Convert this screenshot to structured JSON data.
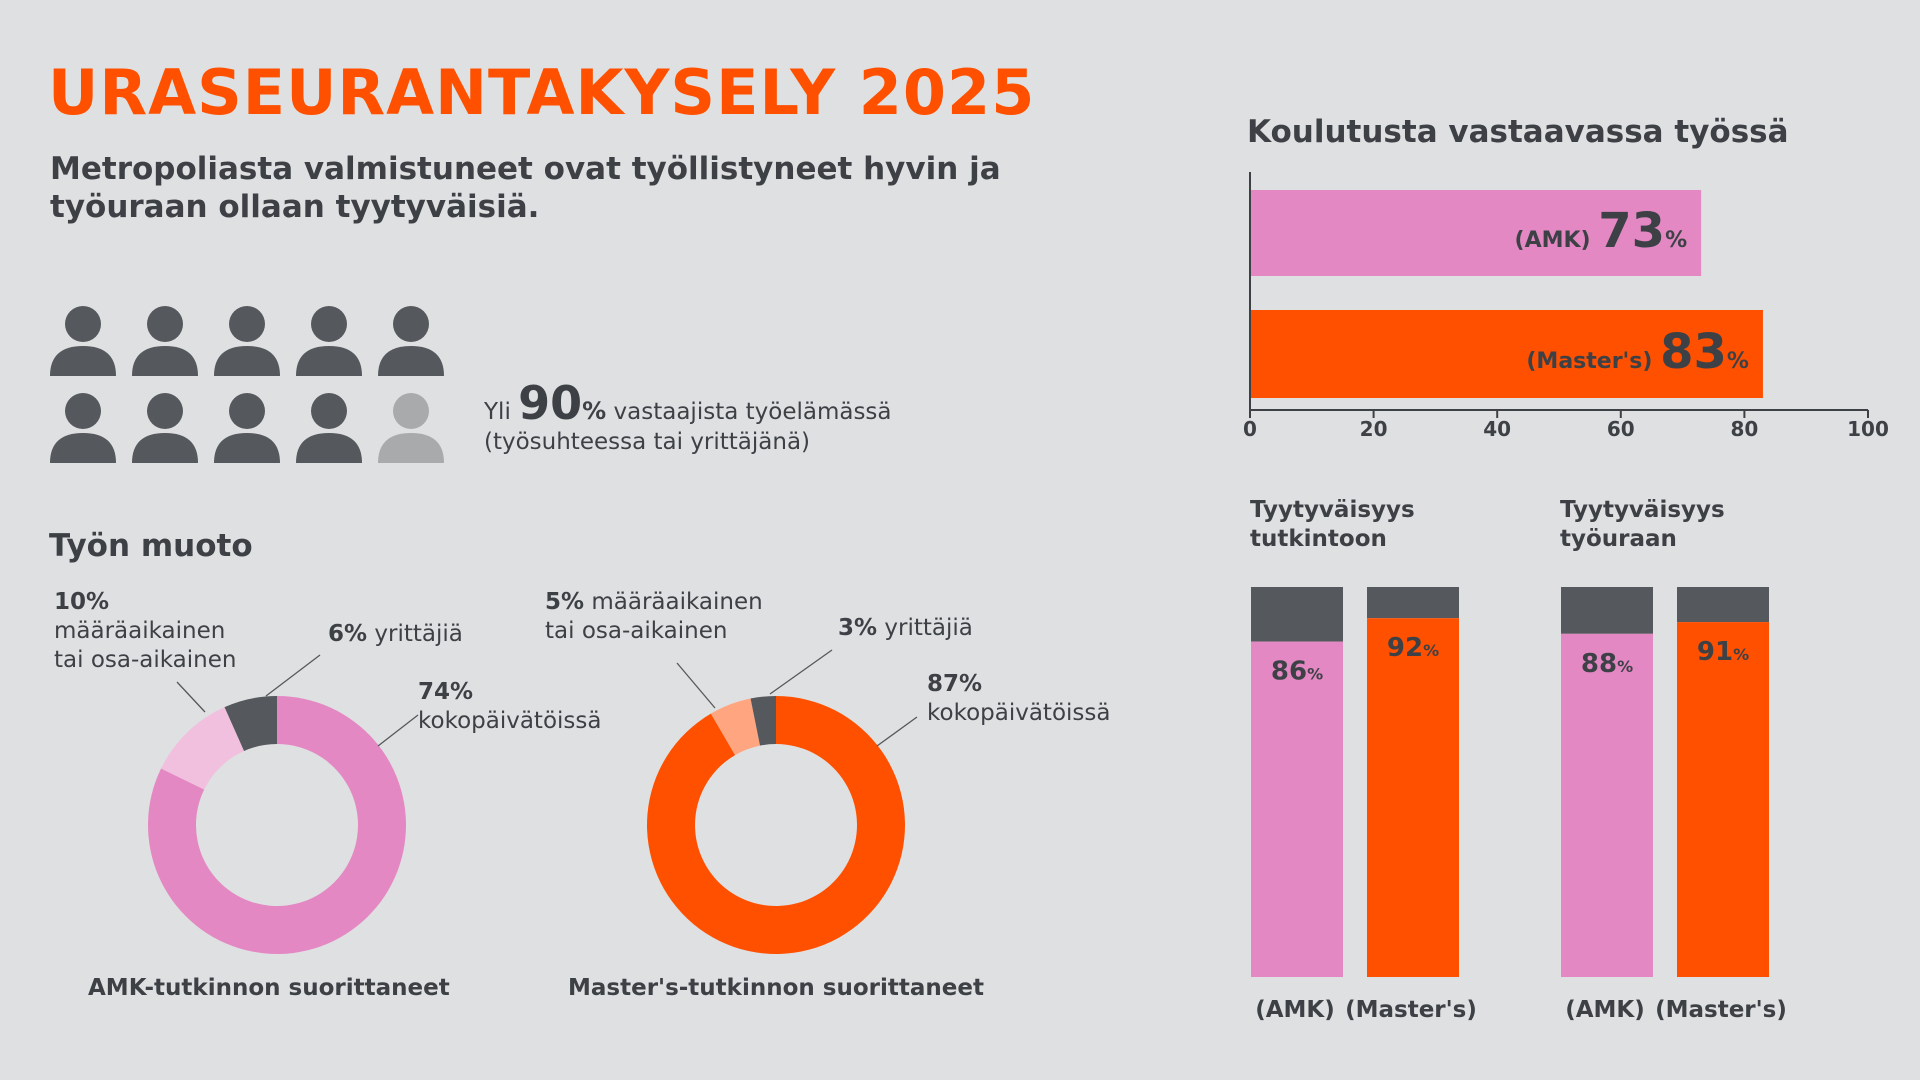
{
  "header": {
    "title": "URASEURANTAKYSELY 2025",
    "subtitle_line1": "Metropoliasta valmistuneet ovat työllistyneet hyvin ja",
    "subtitle_line2": "työuraan ollaan tyytyväisiä."
  },
  "employment": {
    "icons_total": 10,
    "icons_highlighted": 9,
    "prefix": "Yli",
    "value": "90",
    "unit": "%",
    "suffix": "vastaajista työelämässä",
    "line2": "(työsuhteessa tai yrittäjänä)",
    "icon_name": "person-icon"
  },
  "colors": {
    "orange": "#ff5000",
    "pink": "#e488c4",
    "light_pink": "#f1c0de",
    "light_orange": "#ffa57f",
    "dark": "#55585c",
    "gray_icon": "#a9aaab",
    "text": "#3d4146"
  },
  "work_form": {
    "title": "Työn muoto"
  },
  "chart_data": [
    {
      "type": "pie",
      "title": "AMK-tutkinnon suorittaneet",
      "labels": [
        "kokopäivätöissä",
        "määräaikainen tai osa-aikainen",
        "yrittäjiä"
      ],
      "values": [
        74,
        10,
        6
      ],
      "label_texts": {
        "full_pct": "74%",
        "full_label": "kokopäivätöissä",
        "part_pct": "10%",
        "part_label1": "määräaikainen",
        "part_label2": "tai osa-aikainen",
        "ent_pct": "6%",
        "ent_label": "yrittäjiä"
      }
    },
    {
      "type": "pie",
      "title": "Master's-tutkinnon suorittaneet",
      "labels": [
        "kokopäivätöissä",
        "määräaikainen tai osa-aikainen",
        "yrittäjiä"
      ],
      "values": [
        87,
        5,
        3
      ],
      "label_texts": {
        "full_pct": "87%",
        "full_label": "kokopäivätöissä",
        "part_pct": "5%",
        "part_label1": "määräaikainen",
        "part_label2": "tai osa-aikainen",
        "ent_pct": "3%",
        "ent_label": "yrittäjiä"
      }
    },
    {
      "type": "bar",
      "orientation": "horizontal",
      "title": "Koulutusta vastaavassa työssä",
      "categories": [
        "(AMK)",
        "(Master's)"
      ],
      "values": [
        73,
        83
      ],
      "xlim": [
        0,
        100
      ],
      "ticks": [
        0,
        20,
        40,
        60,
        80,
        100
      ]
    },
    {
      "type": "bar",
      "stacked": true,
      "title_line1": "Tyytyväisyys",
      "title_line2": "tutkintoon",
      "categories": [
        "(AMK)",
        "(Master's)"
      ],
      "values": [
        86,
        92
      ],
      "ylim": [
        0,
        100
      ]
    },
    {
      "type": "bar",
      "stacked": true,
      "title_line1": "Tyytyväisyys",
      "title_line2": "työuraan",
      "categories": [
        "(AMK)",
        "(Master's)"
      ],
      "values": [
        88,
        91
      ],
      "ylim": [
        0,
        100
      ]
    }
  ]
}
